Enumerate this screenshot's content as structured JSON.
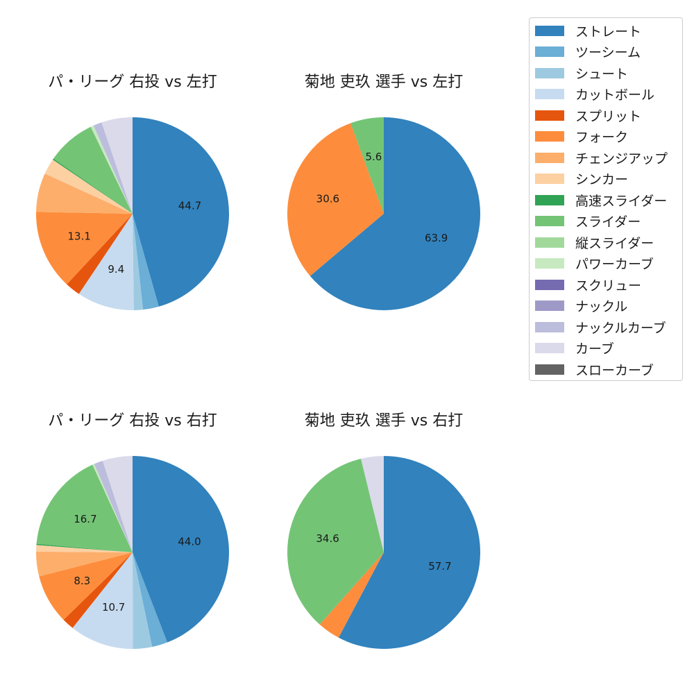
{
  "chart_data": [
    {
      "type": "pie",
      "title": "パ・リーグ 右投 vs 左打",
      "categories": [
        "ストレート",
        "ツーシーム",
        "シュート",
        "カットボール",
        "スプリット",
        "フォーク",
        "チェンジアップ",
        "シンカー",
        "高速スライダー",
        "スライダー",
        "縦スライダー",
        "パワーカーブ",
        "スクリュー",
        "ナックル",
        "ナックルカーブ",
        "カーブ",
        "スローカーブ"
      ],
      "values": [
        44.7,
        2.6,
        1.5,
        9.4,
        2.5,
        13.1,
        6.4,
        2.6,
        0.2,
        8.0,
        0,
        0.5,
        0,
        0,
        1.4,
        5.1,
        0
      ],
      "labels": [
        "44.7",
        "",
        "",
        "9.4",
        "",
        "13.1",
        "",
        "",
        "",
        "",
        "",
        "",
        "",
        "",
        "",
        "",
        ""
      ]
    },
    {
      "type": "pie",
      "title": "菊地 吏玖  選手 vs 左打",
      "categories": [
        "ストレート",
        "フォーク",
        "スライダー"
      ],
      "values": [
        63.9,
        30.6,
        5.6
      ],
      "labels": [
        "63.9",
        "30.6",
        "5.6"
      ]
    },
    {
      "type": "pie",
      "title": "パ・リーグ 右投 vs 右打",
      "categories": [
        "ストレート",
        "ツーシーム",
        "シュート",
        "カットボール",
        "スプリット",
        "フォーク",
        "チェンジアップ",
        "シンカー",
        "高速スライダー",
        "スライダー",
        "縦スライダー",
        "パワーカーブ",
        "スクリュー",
        "ナックル",
        "ナックルカーブ",
        "カーブ",
        "スローカーブ"
      ],
      "values": [
        44.0,
        2.6,
        3.2,
        10.7,
        2.0,
        8.3,
        4.1,
        1.1,
        0.2,
        16.7,
        0,
        0.3,
        0,
        0,
        1.5,
        5.0,
        0
      ],
      "labels": [
        "44.0",
        "",
        "",
        "10.7",
        "",
        "8.3",
        "",
        "",
        "",
        "16.7",
        "",
        "",
        "",
        "",
        "",
        "",
        ""
      ]
    },
    {
      "type": "pie",
      "title": "菊地 吏玖  選手 vs 右打",
      "categories": [
        "ストレート",
        "フォーク",
        "スライダー",
        "カーブ"
      ],
      "values": [
        57.7,
        3.8,
        34.6,
        3.8
      ],
      "labels": [
        "57.7",
        "",
        "34.6",
        ""
      ]
    }
  ],
  "legend": {
    "placement": "top-right",
    "items": [
      {
        "label": "ストレート",
        "color": "#3182bd"
      },
      {
        "label": "ツーシーム",
        "color": "#6baed6"
      },
      {
        "label": "シュート",
        "color": "#9ecae1"
      },
      {
        "label": "カットボール",
        "color": "#c6dbef"
      },
      {
        "label": "スプリット",
        "color": "#e6550d"
      },
      {
        "label": "フォーク",
        "color": "#fd8d3c"
      },
      {
        "label": "チェンジアップ",
        "color": "#fdae6b"
      },
      {
        "label": "シンカー",
        "color": "#fdd0a2"
      },
      {
        "label": "高速スライダー",
        "color": "#31a354"
      },
      {
        "label": "スライダー",
        "color": "#74c476"
      },
      {
        "label": "縦スライダー",
        "color": "#a1d99b"
      },
      {
        "label": "パワーカーブ",
        "color": "#c7e9c0"
      },
      {
        "label": "スクリュー",
        "color": "#756bb1"
      },
      {
        "label": "ナックル",
        "color": "#9e9ac8"
      },
      {
        "label": "ナックルカーブ",
        "color": "#bcbddc"
      },
      {
        "label": "カーブ",
        "color": "#dadaeb"
      },
      {
        "label": "スローカーブ",
        "color": "#636363"
      }
    ]
  }
}
